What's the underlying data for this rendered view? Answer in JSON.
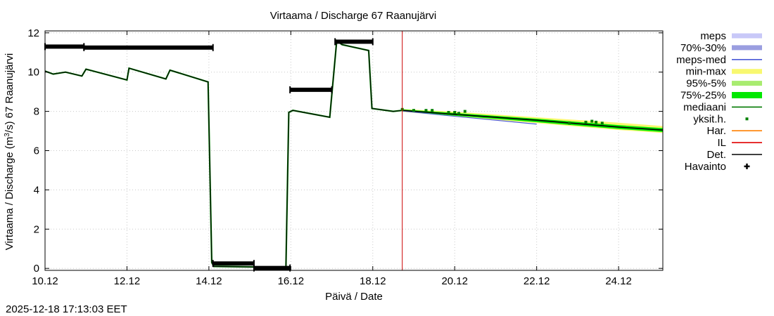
{
  "chart_data": {
    "type": "line",
    "title": "Virtaama / Discharge  67 Raanujärvi",
    "ylabel_prefix": "Virtaama / Discharge (m",
    "ylabel_sup": "3",
    "ylabel_suffix": "/s)  67 Raanujärvi",
    "xlabel": "Päivä / Date",
    "timestamp": "2025-12-18 17:13:03 EET",
    "xlim": [
      10.0,
      25.08
    ],
    "ylim": [
      -0.1,
      12.1
    ],
    "xticks": [
      {
        "x": 10,
        "label": "10.12"
      },
      {
        "x": 12,
        "label": "12.12"
      },
      {
        "x": 14,
        "label": "14.12"
      },
      {
        "x": 16,
        "label": "16.12"
      },
      {
        "x": 18,
        "label": "18.12"
      },
      {
        "x": 20,
        "label": "20.12"
      },
      {
        "x": 22,
        "label": "22.12"
      },
      {
        "x": 24,
        "label": "24.12"
      }
    ],
    "yticks": [
      0,
      2,
      4,
      6,
      8,
      10,
      12
    ],
    "forecast_start": 18.72,
    "colors": {
      "meps": "#c8c8f8",
      "meps_70_30": "#9a9ee0",
      "meps_med": "#4a5ad8",
      "min_max": "#f8f870",
      "p95_5": "#a8ec70",
      "p75_25": "#00e800",
      "mediaani": "#007800",
      "yksit": "#008000",
      "har": "#ff8000",
      "il": "#e00000",
      "det": "#000000",
      "havainto": "#000000",
      "forecast_line": "#cc0000"
    },
    "legend": [
      {
        "key": "meps",
        "label": "meps",
        "style": "band"
      },
      {
        "key": "meps_70_30",
        "label": "70%-30%",
        "style": "band"
      },
      {
        "key": "meps_med",
        "label": "meps-med",
        "style": "line"
      },
      {
        "key": "min_max",
        "label": "min-max",
        "style": "band"
      },
      {
        "key": "p95_5",
        "label": "95%-5%",
        "style": "band"
      },
      {
        "key": "p75_25",
        "label": "75%-25%",
        "style": "band"
      },
      {
        "key": "mediaani",
        "label": "mediaani",
        "style": "line"
      },
      {
        "key": "yksit",
        "label": "yksit.h.",
        "style": "dot"
      },
      {
        "key": "har",
        "label": "Har.",
        "style": "line"
      },
      {
        "key": "il",
        "label": "IL",
        "style": "line"
      },
      {
        "key": "det",
        "label": "Det.",
        "style": "line"
      },
      {
        "key": "havainto",
        "label": "Havainto",
        "style": "cross"
      }
    ],
    "observations": [
      {
        "x_start": 10.0,
        "x_end": 10.95,
        "value": 11.3
      },
      {
        "x_start": 10.95,
        "x_end": 14.1,
        "value": 11.25
      },
      {
        "x_start": 14.1,
        "x_end": 15.1,
        "value": 0.25
      },
      {
        "x_start": 15.1,
        "x_end": 15.98,
        "value": 0.02
      },
      {
        "x_start": 15.98,
        "x_end": 17.0,
        "value": 9.1
      },
      {
        "x_start": 17.08,
        "x_end": 18.0,
        "value": 11.55
      }
    ],
    "det_series": {
      "x": [
        10.0,
        10.2,
        10.5,
        10.9,
        11.0,
        12.0,
        12.05,
        12.95,
        13.05,
        13.98,
        14.07,
        14.12,
        15.88,
        15.95,
        16.05,
        16.95,
        17.12,
        17.25,
        17.9,
        17.98,
        18.5,
        18.72
      ],
      "y": [
        10.05,
        9.9,
        10.0,
        9.8,
        10.15,
        9.6,
        10.2,
        9.65,
        10.1,
        9.5,
        0.3,
        0.1,
        0.05,
        7.95,
        8.05,
        7.7,
        11.6,
        11.4,
        11.1,
        8.15,
        8.0,
        8.05
      ]
    },
    "mediaani": {
      "x": [
        18.72,
        20.0,
        22.0,
        24.0,
        25.08
      ],
      "y": [
        8.05,
        7.85,
        7.55,
        7.2,
        7.05
      ]
    },
    "band_75_25": {
      "x": [
        18.72,
        20.0,
        22.0,
        24.0,
        25.08
      ],
      "low": [
        8.0,
        7.78,
        7.45,
        7.1,
        6.95
      ],
      "high": [
        8.1,
        7.92,
        7.63,
        7.3,
        7.15
      ]
    },
    "band_min_max": {
      "x": [
        18.72,
        20.0,
        22.0,
        24.0,
        25.08
      ],
      "low": [
        7.98,
        7.74,
        7.4,
        7.05,
        6.9
      ],
      "high": [
        8.12,
        7.98,
        7.7,
        7.42,
        7.25
      ]
    },
    "meps_med": {
      "x": [
        18.72,
        20.0,
        22.0
      ],
      "y": [
        8.02,
        7.75,
        7.35
      ]
    },
    "yksit_points": [
      {
        "x": 18.72,
        "y": 8.1
      },
      {
        "x": 19.0,
        "y": 8.05
      },
      {
        "x": 19.3,
        "y": 8.05
      },
      {
        "x": 19.45,
        "y": 8.05
      },
      {
        "x": 19.85,
        "y": 7.95
      },
      {
        "x": 20.0,
        "y": 7.95
      },
      {
        "x": 20.1,
        "y": 7.9
      },
      {
        "x": 20.25,
        "y": 8.0
      },
      {
        "x": 22.8,
        "y": 7.4
      },
      {
        "x": 23.2,
        "y": 7.45
      },
      {
        "x": 23.35,
        "y": 7.5
      },
      {
        "x": 23.45,
        "y": 7.45
      },
      {
        "x": 23.6,
        "y": 7.4
      }
    ]
  }
}
